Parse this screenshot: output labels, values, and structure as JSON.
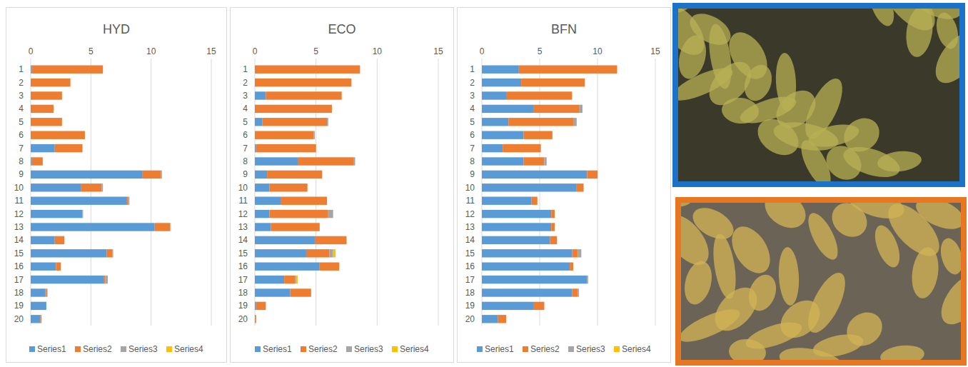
{
  "chart_data": [
    {
      "type": "bar",
      "title": "HYD",
      "orientation": "horizontal",
      "stacked": true,
      "grid": true,
      "legend": "bottom",
      "categories": [
        "1",
        "2",
        "3",
        "4",
        "5",
        "6",
        "7",
        "8",
        "9",
        "10",
        "11",
        "12",
        "13",
        "14",
        "15",
        "16",
        "17",
        "18",
        "19",
        "20"
      ],
      "xlim": [
        0,
        15
      ],
      "xticks": [
        0,
        5,
        10,
        15
      ],
      "series": [
        {
          "name": "Series1",
          "color": "#5b9bd5",
          "values": [
            0.1,
            0,
            0,
            0,
            0,
            0,
            2.0,
            0.1,
            9.3,
            4.2,
            8.0,
            4.3,
            10.3,
            2.0,
            6.3,
            2.1,
            6.1,
            1.2,
            1.3,
            0.8
          ]
        },
        {
          "name": "Series2",
          "color": "#ed7d31",
          "values": [
            5.9,
            3.3,
            2.6,
            1.9,
            2.6,
            4.5,
            2.3,
            0.9,
            1.5,
            1.7,
            0.1,
            0,
            1.3,
            0.8,
            0.5,
            0.4,
            0.1,
            0.1,
            0,
            0.1
          ]
        },
        {
          "name": "Series3",
          "color": "#a5a5a5",
          "values": [
            0,
            0,
            0,
            0,
            0,
            0,
            0,
            0,
            0.1,
            0.1,
            0.1,
            0.05,
            0,
            0,
            0.05,
            0,
            0.2,
            0.1,
            0,
            0
          ]
        },
        {
          "name": "Series4",
          "color": "#ffc000",
          "values": [
            0,
            0,
            0,
            0,
            0,
            0,
            0,
            0,
            0,
            0,
            0,
            0,
            0,
            0,
            0,
            0,
            0,
            0,
            0,
            0
          ]
        }
      ]
    },
    {
      "type": "bar",
      "title": "ECO",
      "orientation": "horizontal",
      "stacked": true,
      "grid": true,
      "legend": "bottom",
      "categories": [
        "1",
        "2",
        "3",
        "4",
        "5",
        "6",
        "7",
        "8",
        "9",
        "10",
        "11",
        "12",
        "13",
        "14",
        "15",
        "16",
        "17",
        "18",
        "19",
        "20"
      ],
      "xlim": [
        0,
        15
      ],
      "xticks": [
        0,
        5,
        10,
        15
      ],
      "series": [
        {
          "name": "Series1",
          "color": "#5b9bd5",
          "values": [
            0,
            0,
            0.9,
            0,
            0.6,
            0,
            0.1,
            3.5,
            1.0,
            1.2,
            2.1,
            1.2,
            1.3,
            4.9,
            4.2,
            5.3,
            2.4,
            2.9,
            0.1,
            0
          ]
        },
        {
          "name": "Series2",
          "color": "#ed7d31",
          "values": [
            8.6,
            7.9,
            6.2,
            6.3,
            5.3,
            4.8,
            4.9,
            4.6,
            4.5,
            3.1,
            3.8,
            4.8,
            4.0,
            2.6,
            1.9,
            1.6,
            0.9,
            1.7,
            0.8,
            0.1
          ]
        },
        {
          "name": "Series3",
          "color": "#a5a5a5",
          "values": [
            0,
            0,
            0,
            0,
            0.1,
            0.1,
            0,
            0.1,
            0,
            0,
            0,
            0.4,
            0,
            0,
            0.3,
            0,
            0.1,
            0,
            0,
            0
          ]
        },
        {
          "name": "Series4",
          "color": "#ffc000",
          "values": [
            0,
            0,
            0,
            0,
            0,
            0,
            0,
            0,
            0,
            0,
            0,
            0,
            0,
            0,
            0.2,
            0,
            0.1,
            0,
            0,
            0
          ]
        }
      ]
    },
    {
      "type": "bar",
      "title": "BFN",
      "orientation": "horizontal",
      "stacked": true,
      "grid": true,
      "legend": "bottom",
      "categories": [
        "1",
        "2",
        "3",
        "4",
        "5",
        "6",
        "7",
        "8",
        "9",
        "10",
        "11",
        "12",
        "13",
        "14",
        "15",
        "16",
        "17",
        "18",
        "19",
        "20"
      ],
      "xlim": [
        0,
        15
      ],
      "xticks": [
        0,
        5,
        10,
        15
      ],
      "series": [
        {
          "name": "Series1",
          "color": "#5b9bd5",
          "values": [
            3.2,
            3.4,
            2.1,
            4.5,
            2.3,
            3.6,
            1.8,
            3.6,
            9.1,
            8.2,
            4.3,
            6.0,
            6.0,
            5.9,
            7.8,
            7.6,
            9.1,
            7.8,
            4.5,
            1.4
          ]
        },
        {
          "name": "Series2",
          "color": "#ed7d31",
          "values": [
            8.5,
            5.5,
            5.7,
            3.9,
            5.6,
            2.5,
            3.3,
            1.8,
            0.9,
            0.6,
            0.5,
            0.3,
            0.3,
            0.6,
            0.5,
            0.3,
            0,
            0.5,
            0.9,
            0.7
          ]
        },
        {
          "name": "Series3",
          "color": "#a5a5a5",
          "values": [
            0,
            0,
            0,
            0.3,
            0.3,
            0,
            0,
            0.2,
            0,
            0,
            0,
            0,
            0,
            0,
            0.3,
            0,
            0.1,
            0.1,
            0,
            0
          ]
        },
        {
          "name": "Series4",
          "color": "#ffc000",
          "values": [
            0,
            0,
            0,
            0,
            0,
            0,
            0,
            0,
            0,
            0,
            0,
            0,
            0,
            0,
            0,
            0,
            0,
            0,
            0,
            0
          ]
        }
      ]
    }
  ]
}
